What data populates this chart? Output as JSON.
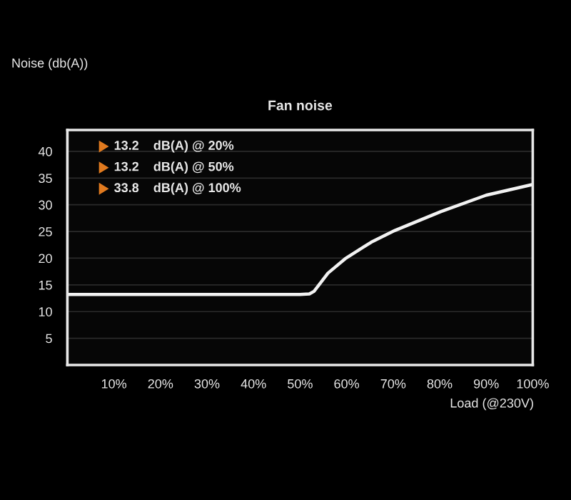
{
  "chart_data": {
    "type": "line",
    "title": "Fan noise",
    "xlabel": "Load (@230V)",
    "ylabel": "Noise (db(A))",
    "x": [
      0,
      10,
      20,
      30,
      40,
      50,
      52,
      53,
      56,
      59.7,
      65.3,
      70.4,
      80.2,
      90,
      100
    ],
    "series": [
      {
        "color": "#f2f2f2",
        "values": [
          13.2,
          13.2,
          13.2,
          13.2,
          13.2,
          13.2,
          13.3,
          13.8,
          17.2,
          19.9,
          23,
          25.2,
          28.7,
          31.8,
          33.8
        ]
      }
    ],
    "xlim": [
      0,
      100
    ],
    "ylim": [
      0,
      44
    ],
    "xticks": [
      {
        "value": 10,
        "label": "10%"
      },
      {
        "value": 20,
        "label": "20%"
      },
      {
        "value": 30,
        "label": "30%"
      },
      {
        "value": 40,
        "label": "40%"
      },
      {
        "value": 50,
        "label": "50%"
      },
      {
        "value": 60,
        "label": "60%"
      },
      {
        "value": 70,
        "label": "70%"
      },
      {
        "value": 80,
        "label": "80%"
      },
      {
        "value": 90,
        "label": "90%"
      },
      {
        "value": 100,
        "label": "100%"
      }
    ],
    "yticks": [
      5,
      10,
      15,
      20,
      25,
      30,
      35,
      40
    ],
    "grid": "y",
    "marker": "none",
    "line_style": "solid",
    "annotations": [
      "13.2    dB(A) @ 20%",
      "13.2    dB(A) @ 50%",
      "33.8    dB(A) @ 100%"
    ]
  }
}
